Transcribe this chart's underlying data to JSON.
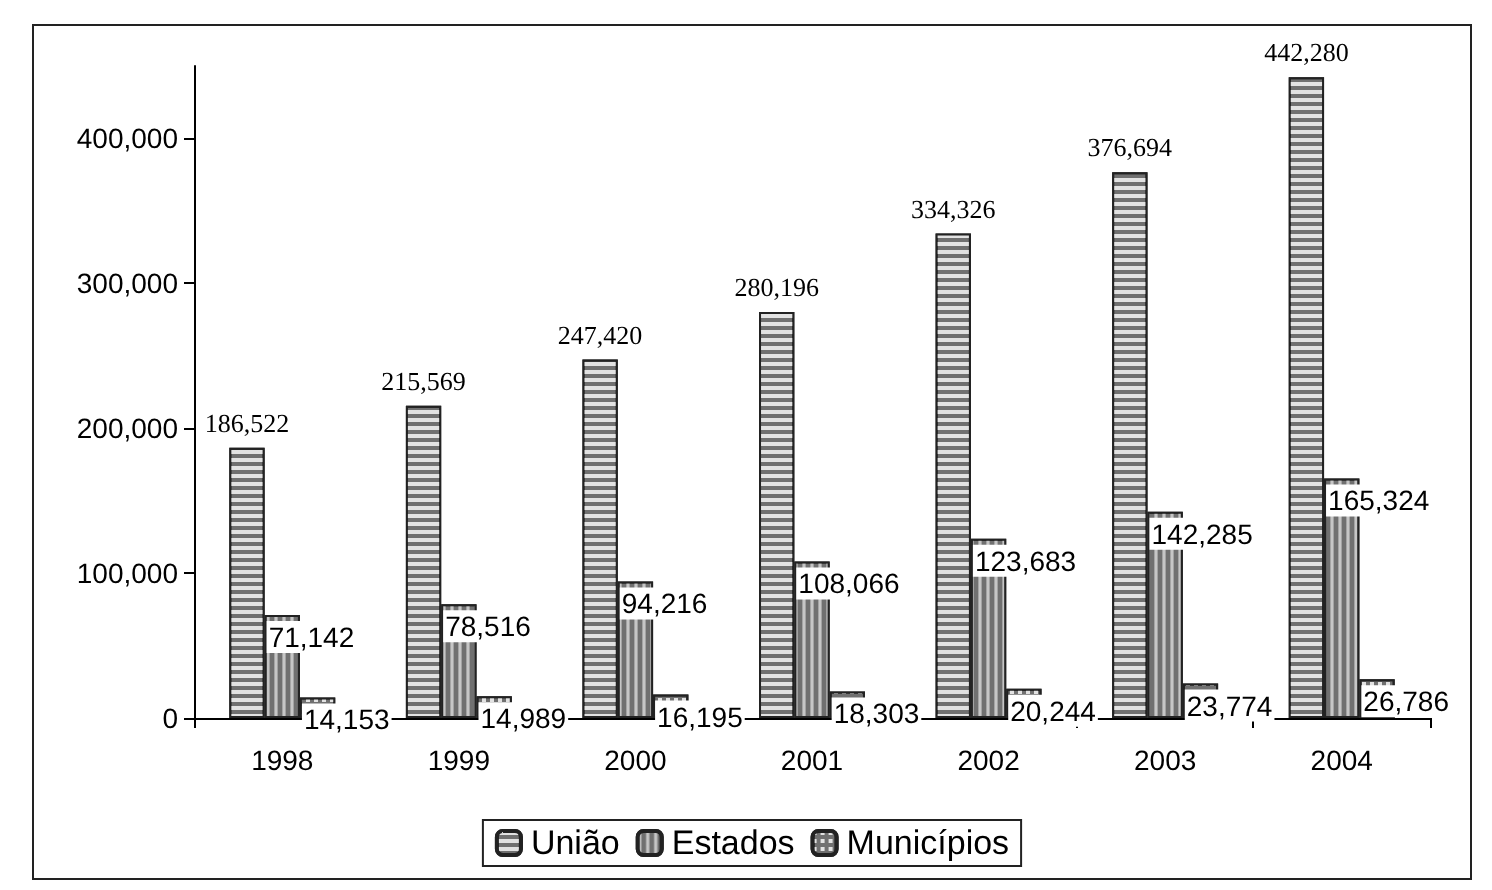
{
  "chart_data": {
    "type": "bar",
    "categories": [
      "1998",
      "1999",
      "2000",
      "2001",
      "2002",
      "2003",
      "2004"
    ],
    "series": [
      {
        "name": "União",
        "color": "#707070",
        "values": [
          186522,
          215569,
          247420,
          280196,
          334326,
          376694,
          442280
        ],
        "value_labels": [
          "186,522",
          "215,569",
          "247,420",
          "280,196",
          "334,326",
          "376,694",
          "442,280"
        ]
      },
      {
        "name": "Estados",
        "color": "#707070",
        "values": [
          71142,
          78516,
          94216,
          108066,
          123683,
          142285,
          165324
        ],
        "value_labels": [
          "71,142",
          "78,516",
          "94,216",
          "108,066",
          "123,683",
          "142,285",
          "165,324"
        ]
      },
      {
        "name": "Municípios",
        "color": "#707070",
        "values": [
          14153,
          14989,
          16195,
          18303,
          20244,
          23774,
          26786
        ],
        "value_labels": [
          "14,153",
          "14,989",
          "16,195",
          "18,303",
          "20,244",
          "23,774",
          "26,786"
        ]
      }
    ],
    "ylim": [
      0,
      450000
    ],
    "yticks": [
      0,
      {
        "value": 100000,
        "label": "100,000"
      },
      {
        "value": 200000,
        "label": "200,000"
      },
      {
        "value": 300000,
        "label": "300,000"
      },
      {
        "value": 400000,
        "label": "400,000"
      }
    ],
    "grid": false,
    "legend": "bottom"
  }
}
